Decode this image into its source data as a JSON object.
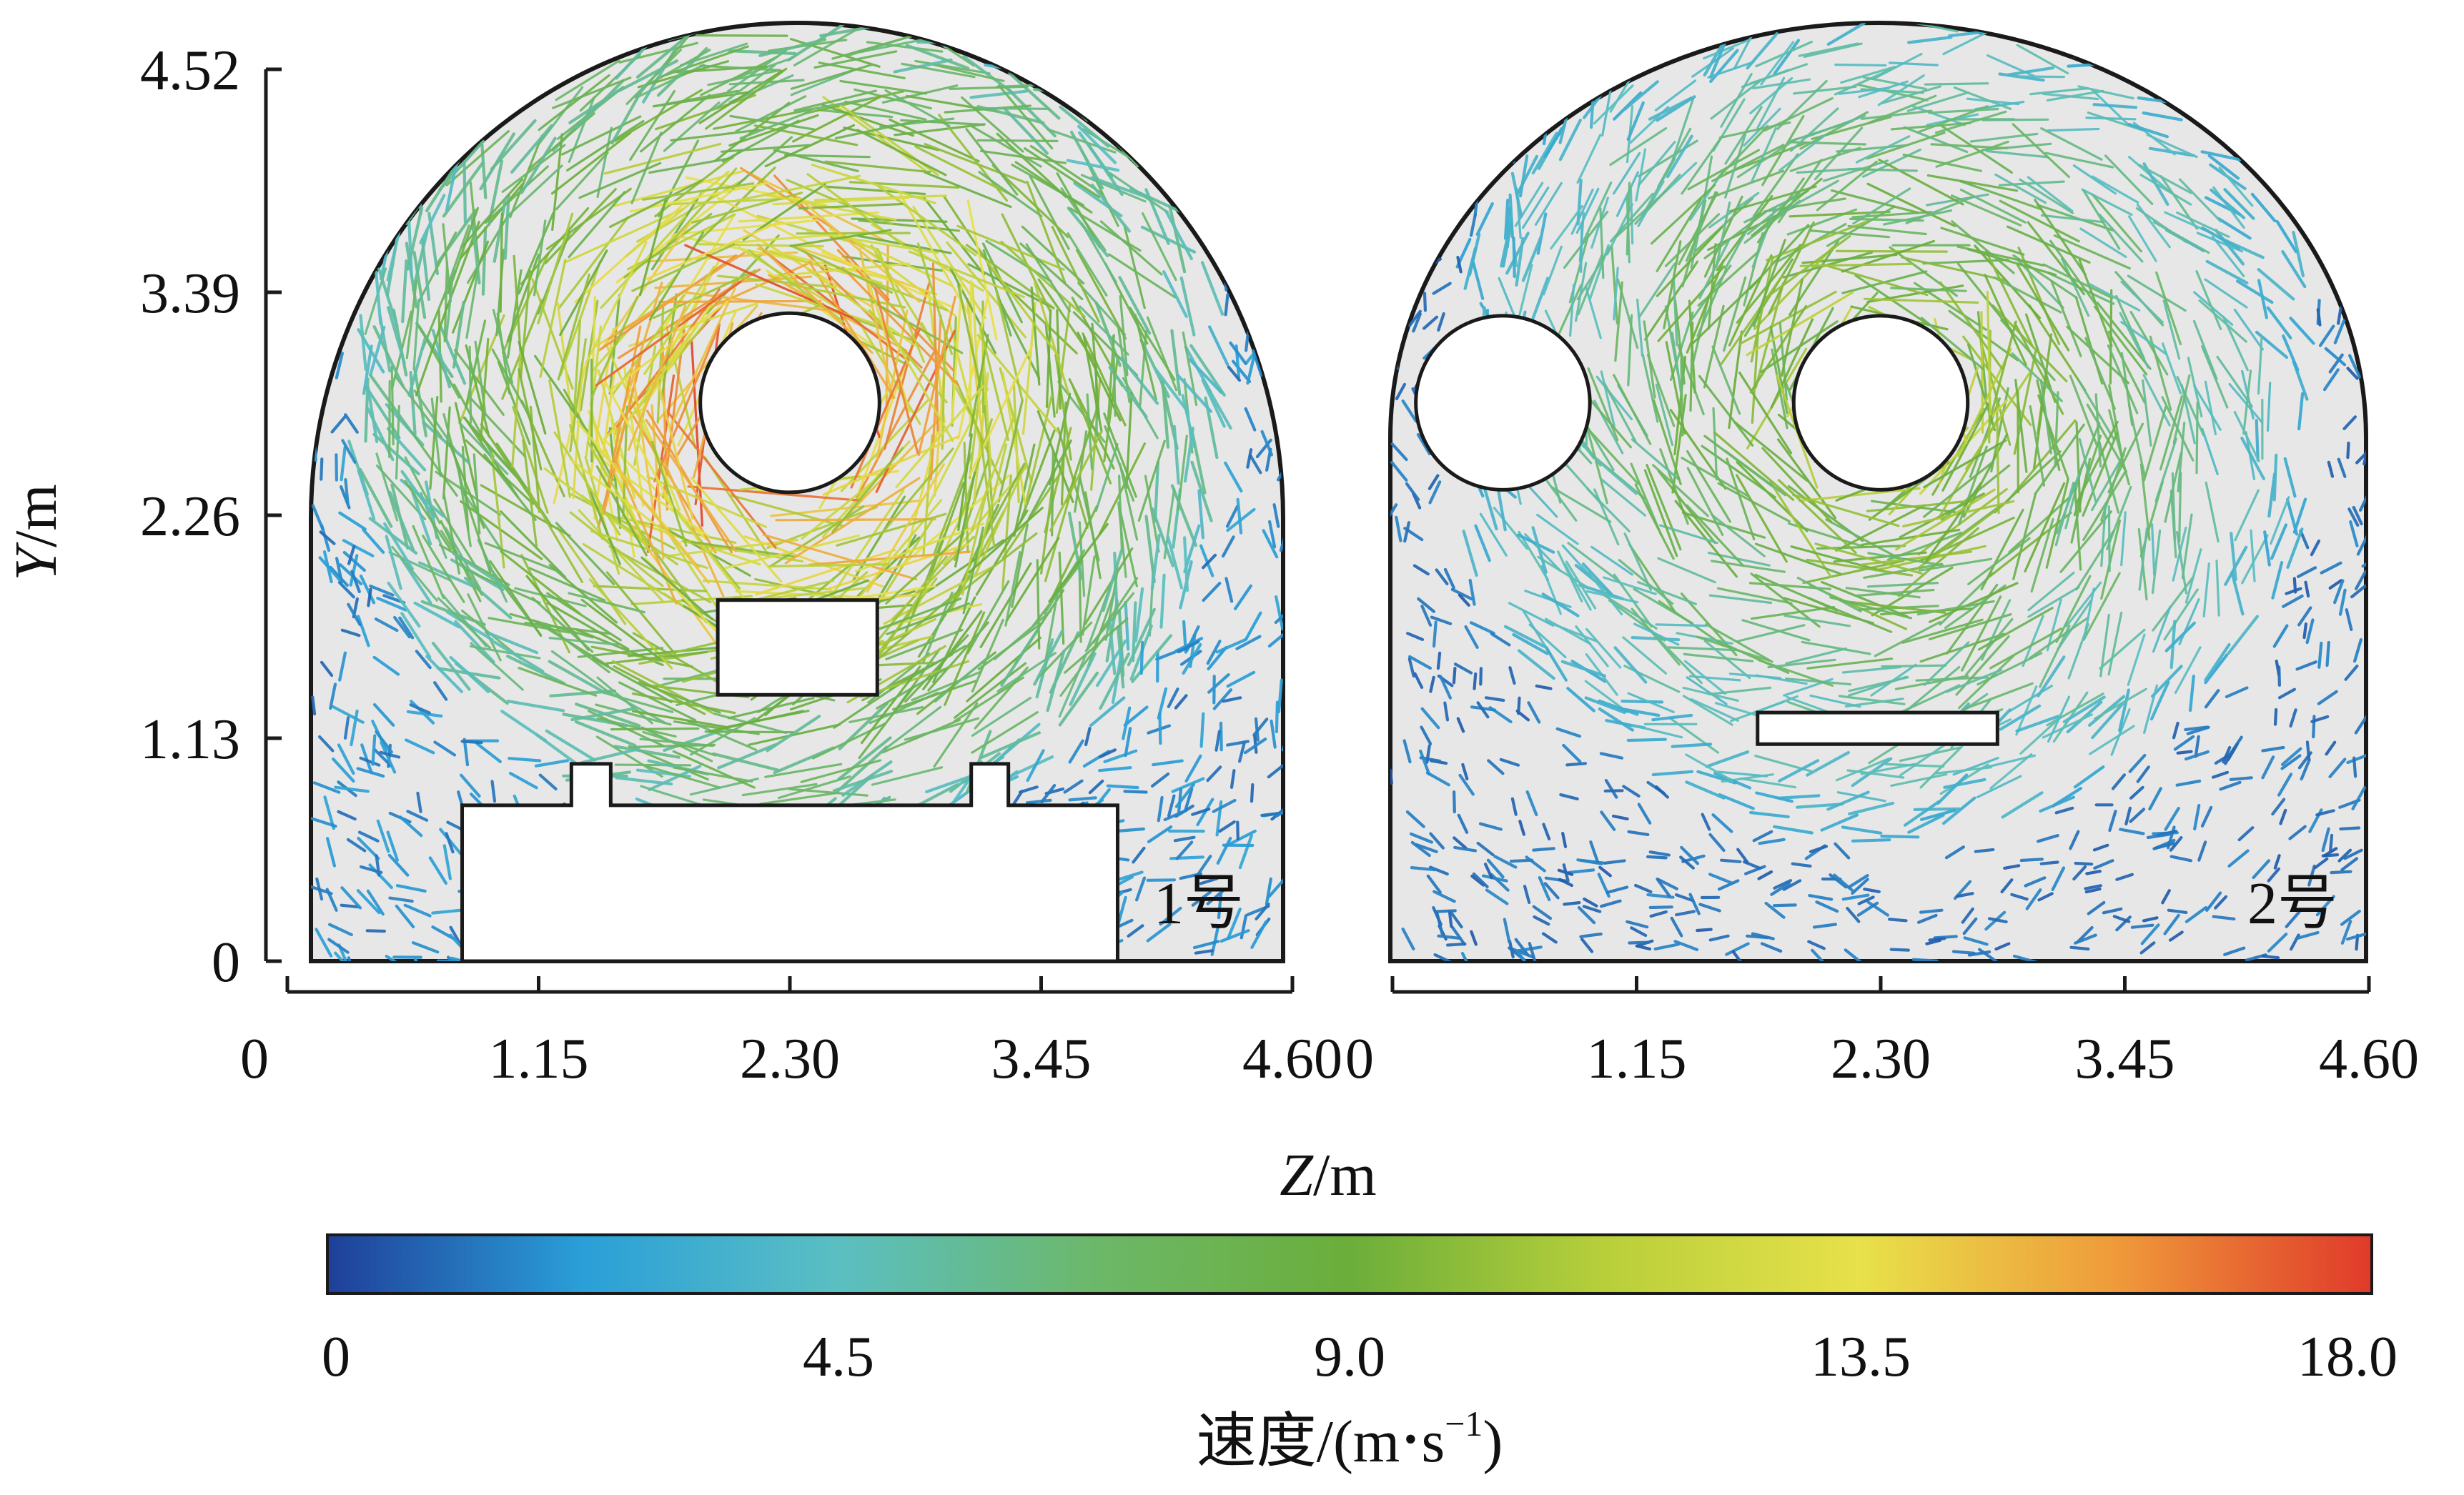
{
  "chart_data": [
    {
      "type": "vector-field",
      "panel_label": "1号",
      "xlabel": "Z/m",
      "ylabel": "Y/m",
      "xlim": [
        0,
        4.6
      ],
      "ylim": [
        0,
        4.52
      ],
      "xticks": [
        "0",
        "1.15",
        "2.30",
        "3.45",
        "4.60"
      ],
      "yticks": [
        "0",
        "1.13",
        "2.26",
        "3.39",
        "4.52"
      ],
      "obstacles": [
        {
          "shape": "circle",
          "center": [
            2.3,
            2.83
          ],
          "radius": 0.41
        },
        {
          "shape": "rect",
          "z": [
            1.97,
            2.7
          ],
          "y": [
            1.35,
            1.83
          ]
        },
        {
          "shape": "train-body",
          "z": [
            0.8,
            3.8
          ],
          "y": [
            0,
            0.79
          ],
          "bumps": [
            [
              1.3,
              1.48
            ],
            [
              3.13,
              3.3
            ]
          ],
          "bump_top": 1.0
        }
      ],
      "vortex_center": [
        2.3,
        2.83
      ],
      "speed_range_m_s": [
        0,
        15
      ]
    },
    {
      "type": "vector-field",
      "panel_label": "2号",
      "xlabel": "Z/m",
      "ylabel": "Y/m",
      "xlim": [
        0,
        4.6
      ],
      "ylim": [
        0,
        4.52
      ],
      "xticks": [
        "0",
        "1.15",
        "2.30",
        "3.45",
        "4.60"
      ],
      "yticks": [
        "0",
        "1.13",
        "2.26",
        "3.39",
        "4.52"
      ],
      "obstacles": [
        {
          "shape": "circle",
          "center": [
            0.52,
            2.83
          ],
          "radius": 0.41
        },
        {
          "shape": "circle",
          "center": [
            2.3,
            2.83
          ],
          "radius": 0.41
        },
        {
          "shape": "rect",
          "z": [
            1.72,
            2.85
          ],
          "y": [
            1.1,
            1.26
          ]
        }
      ],
      "vortex_center": [
        2.3,
        2.83
      ],
      "speed_range_m_s": [
        0,
        10
      ]
    }
  ],
  "shared_axis": {
    "xlabel_italic": "Z",
    "xlabel_unit": "/m",
    "ylabel_italic": "Y",
    "ylabel_unit": "/m"
  },
  "colorbar": {
    "ticks": [
      "0",
      "4.5",
      "9.0",
      "13.5",
      "18.0"
    ],
    "values": [
      0,
      4.5,
      9.0,
      13.5,
      18.0
    ],
    "label_prefix": "速度/(m",
    "label_bullet": "•",
    "label_s": "s",
    "label_exp": "−1",
    "label_suffix": ")",
    "colors": [
      "#1f3f99",
      "#2a9fd8",
      "#5bbfc2",
      "#6cb86a",
      "#6bae3a",
      "#b8cf3a",
      "#e8e14a",
      "#ef9a3a",
      "#e03a2a"
    ]
  },
  "colors": {
    "tunnel_fill": "#e7e7e7",
    "outline": "#1a1a1a"
  }
}
